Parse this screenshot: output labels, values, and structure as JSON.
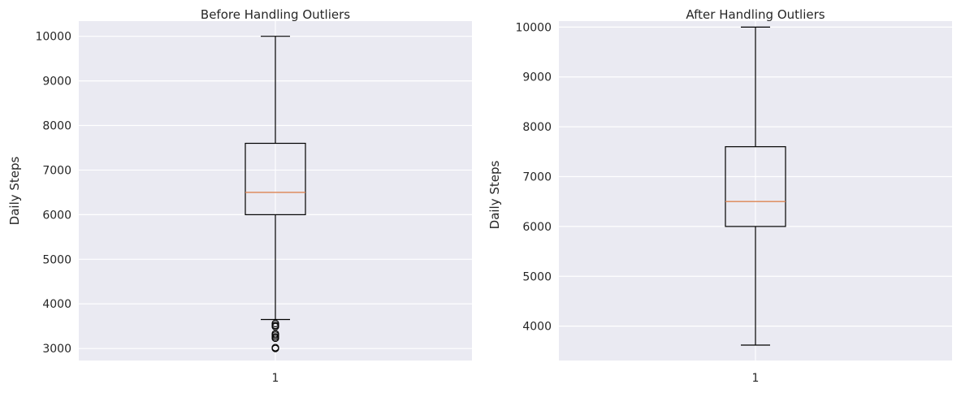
{
  "chart_data": [
    {
      "type": "box",
      "title": "Before Handling Outliers",
      "ylabel": "Daily Steps",
      "categories": [
        "1"
      ],
      "ylim": [
        2730,
        10340
      ],
      "yticks": [
        3000,
        4000,
        5000,
        6000,
        7000,
        8000,
        9000,
        10000
      ],
      "box": {
        "whisker_low": 3650,
        "q1": 6000,
        "median": 6500,
        "q3": 7600,
        "whisker_high": 10000
      },
      "outliers": [
        3000,
        3020,
        3230,
        3260,
        3300,
        3330,
        3490,
        3520,
        3560
      ],
      "grid": true
    },
    {
      "type": "box",
      "title": "After Handling Outliers",
      "ylabel": "Daily Steps",
      "categories": [
        "1"
      ],
      "ylim": [
        3310,
        10120
      ],
      "yticks": [
        4000,
        5000,
        6000,
        7000,
        8000,
        9000,
        10000
      ],
      "box": {
        "whisker_low": 3620,
        "q1": 6000,
        "median": 6500,
        "q3": 7600,
        "whisker_high": 10000
      },
      "outliers": [],
      "grid": true
    }
  ],
  "colors": {
    "plot_background": "#eaeaf2",
    "grid": "#ffffff",
    "box": "#000000",
    "median": "#dd8452"
  }
}
